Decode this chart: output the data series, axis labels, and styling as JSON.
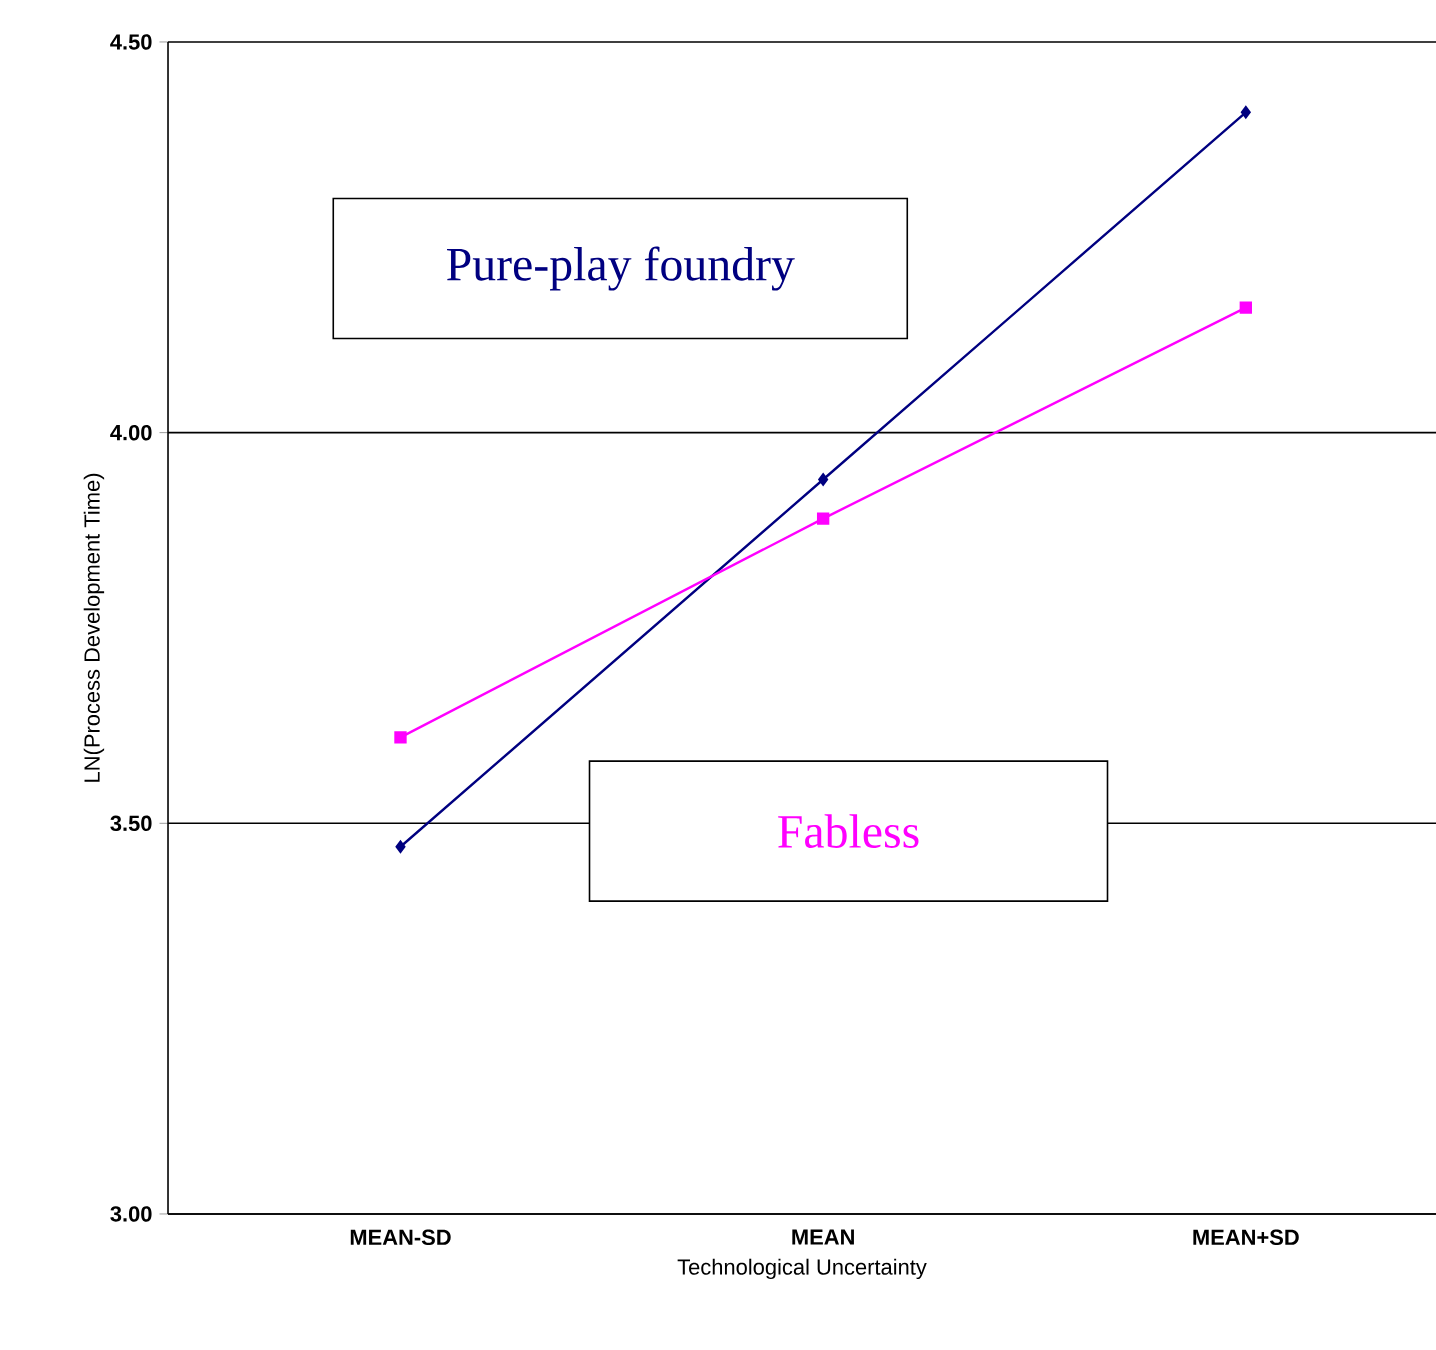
{
  "chart_data": {
    "type": "line",
    "xlabel": "Technological Uncertainty",
    "ylabel": "LN(Process Development Time)",
    "categories": [
      "MEAN-SD",
      "MEAN",
      "MEAN+SD"
    ],
    "series": [
      {
        "name": "Pure-play foundry",
        "color": "#000080",
        "marker": "diamond",
        "values": [
          3.47,
          3.94,
          4.41
        ]
      },
      {
        "name": "Fabless",
        "color": "#ff00ff",
        "marker": "square",
        "values": [
          3.61,
          3.89,
          4.16
        ]
      }
    ],
    "ylim": [
      3.0,
      4.5
    ],
    "yticks": [
      {
        "value": 3.0,
        "label": "3.00"
      },
      {
        "value": 3.5,
        "label": "3.50"
      },
      {
        "value": 4.0,
        "label": "4.00"
      },
      {
        "value": 4.5,
        "label": "4.50"
      }
    ],
    "grid": "y",
    "legend": false
  }
}
